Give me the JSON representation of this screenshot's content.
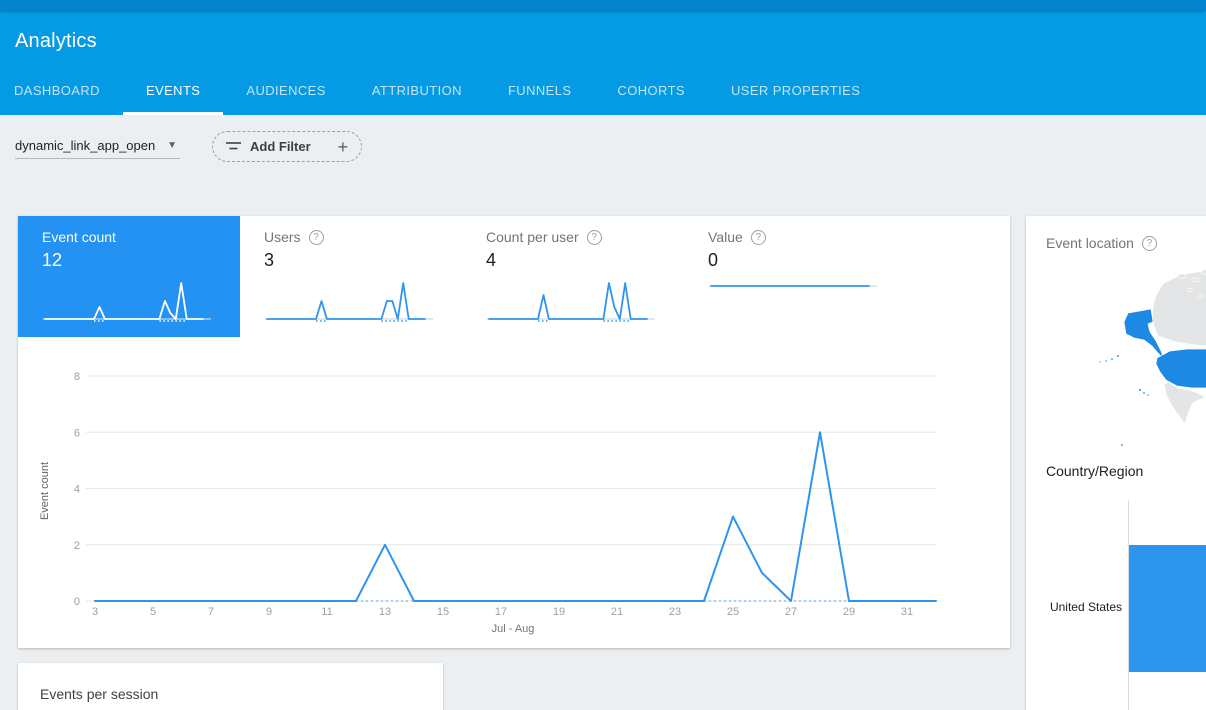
{
  "app": {
    "title": "Analytics"
  },
  "tabs": [
    {
      "label": "DASHBOARD",
      "active": false
    },
    {
      "label": "EVENTS",
      "active": true
    },
    {
      "label": "AUDIENCES",
      "active": false
    },
    {
      "label": "ATTRIBUTION",
      "active": false
    },
    {
      "label": "FUNNELS",
      "active": false
    },
    {
      "label": "COHORTS",
      "active": false
    },
    {
      "label": "USER PROPERTIES",
      "active": false
    }
  ],
  "filter_bar": {
    "event_selector_value": "dynamic_link_app_open",
    "add_filter_label": "Add Filter"
  },
  "metric_cards": [
    {
      "label": "Event count",
      "value": "12",
      "selected": true,
      "has_help": false,
      "spark_chart_id": "spark_event_count"
    },
    {
      "label": "Users",
      "value": "3",
      "selected": false,
      "has_help": true,
      "spark_chart_id": "spark_users"
    },
    {
      "label": "Count per user",
      "value": "4",
      "selected": false,
      "has_help": true,
      "spark_chart_id": "spark_count_per_user"
    },
    {
      "label": "Value",
      "value": "0",
      "selected": false,
      "has_help": true,
      "spark_chart_id": "spark_value"
    }
  ],
  "events_per_session": {
    "title": "Events per session"
  },
  "location_card": {
    "title": "Event location",
    "has_help": true,
    "section_title": "Country/Region",
    "countries": [
      {
        "name": "United States"
      }
    ],
    "map_highlighted": [
      "United States"
    ]
  },
  "colors": {
    "top_strip": "#0283cf",
    "appbar": "#059ae4",
    "page_bg": "#eceff1",
    "selected_card": "#2492f2",
    "chart_line": "#2e95ef",
    "map_land": "#e3e5e6",
    "map_highlight": "#1e88e5",
    "bar_fill": "#2e95ef"
  },
  "chart_data": [
    {
      "id": "event_count_by_day",
      "type": "line",
      "title": "Event count",
      "xlabel": "Jul - Aug",
      "ylabel": "Event count",
      "x": [
        3,
        4,
        5,
        6,
        7,
        8,
        9,
        10,
        11,
        12,
        13,
        14,
        15,
        16,
        17,
        18,
        19,
        20,
        21,
        22,
        23,
        24,
        25,
        26,
        27,
        28,
        29,
        30,
        31,
        32
      ],
      "values": [
        0,
        0,
        0,
        0,
        0,
        0,
        0,
        0,
        0,
        0,
        2,
        0,
        0,
        0,
        0,
        0,
        0,
        0,
        0,
        0,
        0,
        0,
        3,
        1,
        0,
        6,
        0,
        0,
        0,
        0
      ],
      "yticks": [
        0,
        2,
        4,
        6,
        8
      ],
      "xticks": [
        3,
        5,
        7,
        9,
        11,
        13,
        15,
        17,
        19,
        21,
        23,
        25,
        27,
        29,
        31
      ],
      "ylim": [
        0,
        8
      ],
      "grid": true,
      "line_color": "#2e95ef",
      "dotted_zero_color": "#8bc1f2",
      "tick_color": "#9e9e9e"
    },
    {
      "id": "spark_event_count",
      "type": "line",
      "values": [
        0,
        0,
        0,
        0,
        0,
        0,
        0,
        0,
        0,
        0,
        2,
        0,
        0,
        0,
        0,
        0,
        0,
        0,
        0,
        0,
        0,
        0,
        3,
        1,
        0,
        6,
        0,
        0,
        0,
        0
      ],
      "max": 6,
      "color": "#ffffff",
      "axis_color": "rgba(255,255,255,0.85)"
    },
    {
      "id": "spark_users",
      "type": "line",
      "values": [
        0,
        0,
        0,
        0,
        0,
        0,
        0,
        0,
        0,
        0,
        1,
        0,
        0,
        0,
        0,
        0,
        0,
        0,
        0,
        0,
        0,
        0,
        1,
        1,
        0,
        2,
        0,
        0,
        0,
        0
      ],
      "max": 2,
      "color": "#2e95ef",
      "axis_color": "#c9cdd1"
    },
    {
      "id": "spark_count_per_user",
      "type": "line",
      "values": [
        0,
        0,
        0,
        0,
        0,
        0,
        0,
        0,
        0,
        0,
        2,
        0,
        0,
        0,
        0,
        0,
        0,
        0,
        0,
        0,
        0,
        0,
        3,
        1,
        0,
        3,
        0,
        0,
        0,
        0
      ],
      "max": 3,
      "color": "#2e95ef",
      "axis_color": "#c9cdd1"
    },
    {
      "id": "spark_value",
      "type": "line",
      "values": [
        0,
        0,
        0,
        0,
        0,
        0,
        0,
        0,
        0,
        0,
        0,
        0,
        0,
        0,
        0,
        0,
        0,
        0,
        0,
        0,
        0,
        0,
        0,
        0,
        0,
        0,
        0,
        0,
        0,
        0
      ],
      "max": 0,
      "color": "#2e95ef",
      "axis_color": "#c9cdd1"
    },
    {
      "id": "country_region_bar",
      "type": "bar",
      "categories": [
        "United States"
      ],
      "values": [
        null
      ],
      "note": "single horizontal bar, extends beyond visible card edge"
    }
  ]
}
